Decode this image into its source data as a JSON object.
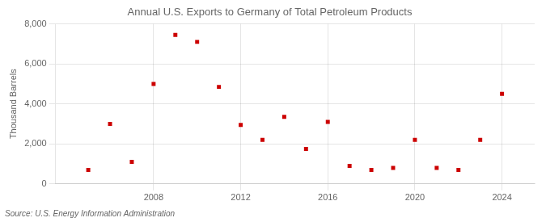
{
  "chart_data": {
    "type": "scatter",
    "title": "Annual U.S. Exports to Germany of Total Petroleum Products",
    "ylabel": "Thousand Barrels",
    "annotation": "Source: U.S. Energy Information Administration",
    "x": [
      2005,
      2006,
      2007,
      2008,
      2009,
      2010,
      2011,
      2012,
      2013,
      2014,
      2015,
      2016,
      2017,
      2018,
      2019,
      2020,
      2021,
      2022,
      2023,
      2024
    ],
    "values": [
      700,
      3000,
      1100,
      5000,
      7450,
      7100,
      4850,
      2950,
      2200,
      3350,
      1750,
      3100,
      900,
      700,
      800,
      2200,
      800,
      700,
      2200,
      4500
    ],
    "color": "#cc0000",
    "marker": "square",
    "xlim": [
      2003.5,
      2025.5
    ],
    "xticks": [
      2008,
      2012,
      2016,
      2020,
      2024
    ],
    "ylim": [
      0,
      8000
    ],
    "yticks": [
      0,
      {
        "value": 2000,
        "label": "2,000"
      },
      {
        "value": 4000,
        "label": "4,000"
      },
      {
        "value": 6000,
        "label": "6,000"
      },
      {
        "value": 8000,
        "label": "8,000"
      }
    ],
    "grid": true
  }
}
